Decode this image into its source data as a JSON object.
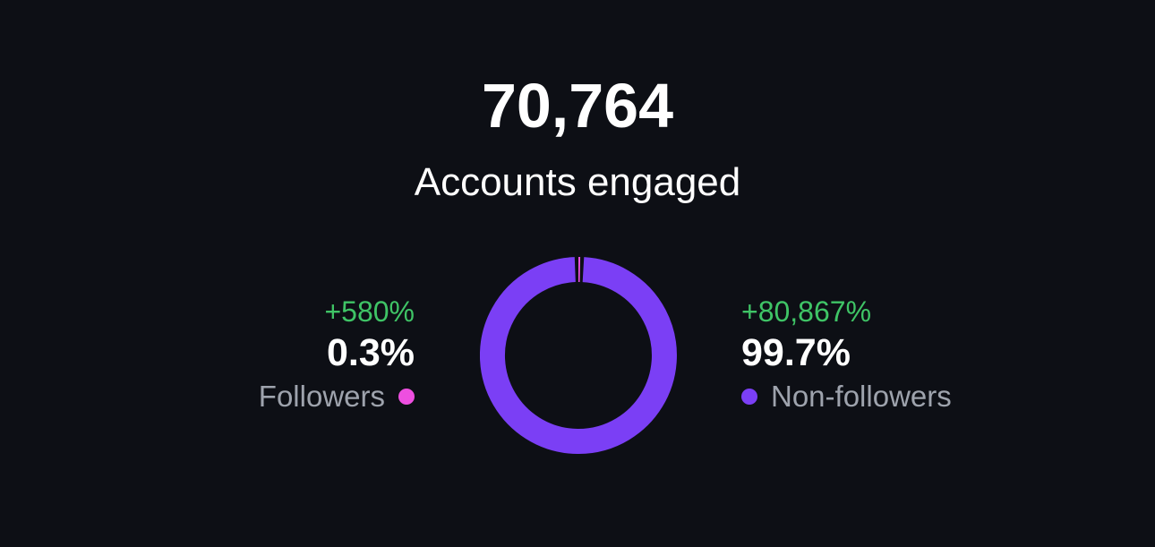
{
  "summary": {
    "total": "70,764",
    "label": "Accounts engaged"
  },
  "followers": {
    "change": "+580%",
    "percent": "0.3%",
    "label": "Followers",
    "share": 0.3,
    "color": "#ee4fe0"
  },
  "non_followers": {
    "change": "+80,867%",
    "percent": "99.7%",
    "label": "Non-followers",
    "share": 99.7,
    "color": "#7b3ff5"
  },
  "colors": {
    "background": "#0d0f15",
    "positive_change": "#3fc466",
    "legend_text": "#9ea3ad"
  }
}
